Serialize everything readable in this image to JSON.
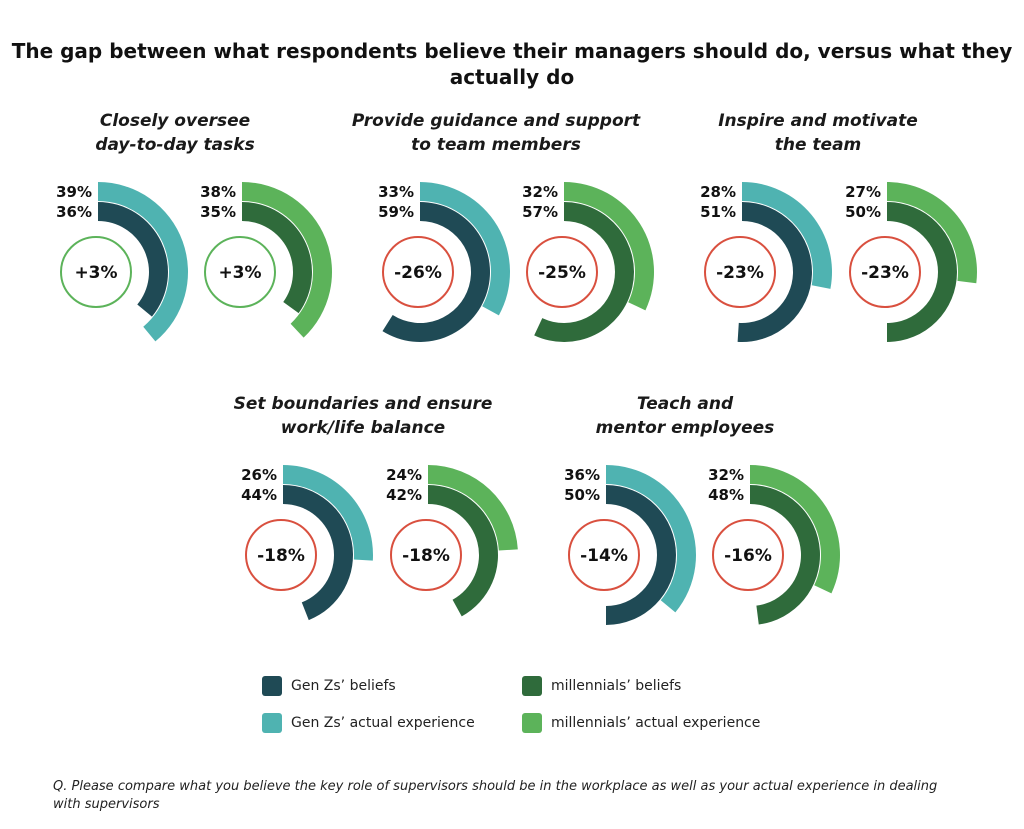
{
  "chart_data": {
    "type": "radial-bar",
    "title": "The gap between what respondents believe their managers should do, versus what they actually do",
    "scale": "100% = full circle",
    "legend": [
      {
        "key": "genz_beliefs",
        "label": "Gen Zs’ beliefs",
        "color": "#1f4a55"
      },
      {
        "key": "mill_beliefs",
        "label": "millennials’ beliefs",
        "color": "#2f6b3b"
      },
      {
        "key": "genz_actual",
        "label": "Gen Zs’ actual experience",
        "color": "#4fb3b1"
      },
      {
        "key": "mill_actual",
        "label": "millennials’ actual experience",
        "color": "#5cb35a"
      }
    ],
    "legend_placement": "bottom",
    "panels": [
      {
        "title": "Closely oversee\nday-to-day tasks",
        "gen_z": {
          "beliefs": 36,
          "actual": 39,
          "gap": "+3%"
        },
        "millennials": {
          "beliefs": 35,
          "actual": 38,
          "gap": "+3%"
        }
      },
      {
        "title": "Provide guidance and support\nto team members",
        "gen_z": {
          "beliefs": 59,
          "actual": 33,
          "gap": "-26%"
        },
        "millennials": {
          "beliefs": 57,
          "actual": 32,
          "gap": "-25%"
        }
      },
      {
        "title": "Inspire and motivate\nthe team",
        "gen_z": {
          "beliefs": 51,
          "actual": 28,
          "gap": "-23%"
        },
        "millennials": {
          "beliefs": 50,
          "actual": 27,
          "gap": "-23%"
        }
      },
      {
        "title": "Set boundaries and ensure\nwork/life balance",
        "gen_z": {
          "beliefs": 44,
          "actual": 26,
          "gap": "-18%"
        },
        "millennials": {
          "beliefs": 42,
          "actual": 24,
          "gap": "-18%"
        }
      },
      {
        "title": "Teach and\nmentor employees",
        "gen_z": {
          "beliefs": 50,
          "actual": 36,
          "gap": "-14%"
        },
        "millennials": {
          "beliefs": 48,
          "actual": 32,
          "gap": "-16%"
        }
      }
    ],
    "gap_colors": {
      "positive": "#5cb35a",
      "negative": "#d9503f"
    }
  },
  "footnote": "Q. Please compare what you believe the key role of supervisors should be in the workplace as well as your actual experience in dealing with supervisors"
}
